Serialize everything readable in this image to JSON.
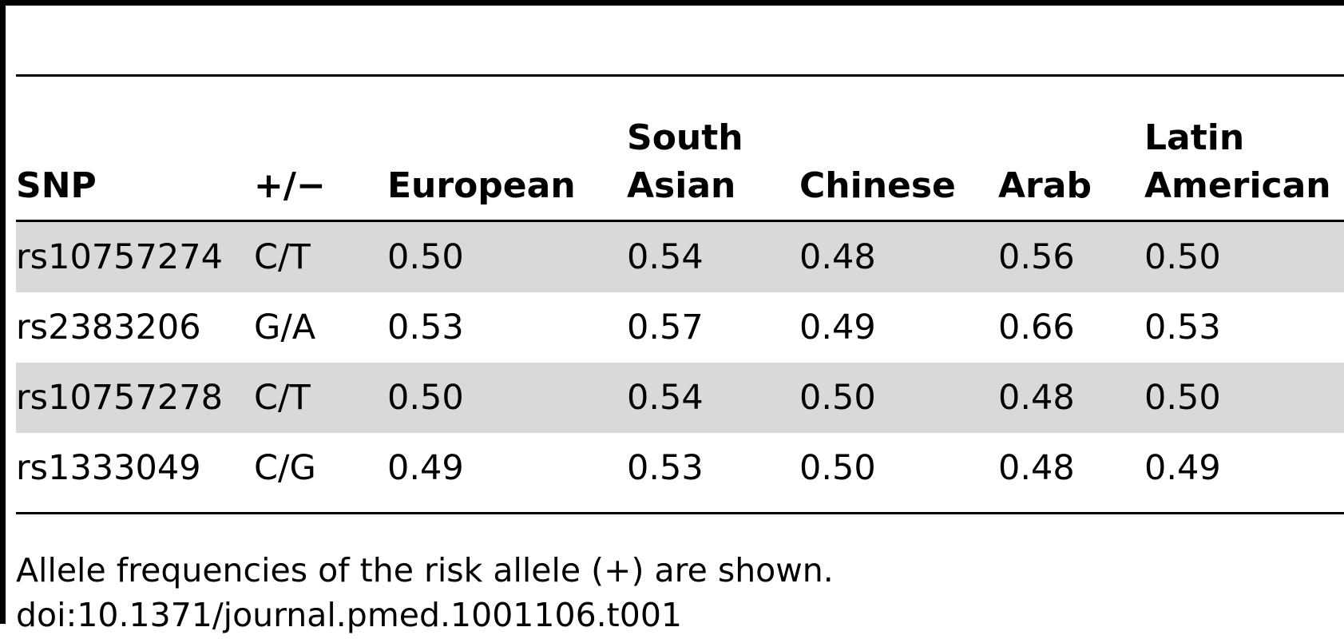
{
  "table": {
    "headers": [
      {
        "line1": "",
        "line2": "SNP"
      },
      {
        "line1": "",
        "line2": "+/−"
      },
      {
        "line1": "",
        "line2": "European"
      },
      {
        "line1": "South",
        "line2": "Asian"
      },
      {
        "line1": "",
        "line2": "Chinese"
      },
      {
        "line1": "",
        "line2": "Arab"
      },
      {
        "line1": "Latin",
        "line2": "American"
      }
    ],
    "rows": [
      [
        "rs10757274",
        "C/T",
        "0.50",
        "0.54",
        "0.48",
        "0.56",
        "0.50"
      ],
      [
        "rs2383206",
        "G/A",
        "0.53",
        "0.57",
        "0.49",
        "0.66",
        "0.53"
      ],
      [
        "rs10757278",
        "C/T",
        "0.50",
        "0.54",
        "0.50",
        "0.48",
        "0.50"
      ],
      [
        "rs1333049",
        "C/G",
        "0.49",
        "0.53",
        "0.50",
        "0.48",
        "0.49"
      ]
    ],
    "row_shading_color": "#d9d9d9"
  },
  "footnote": {
    "note": "Allele frequencies of the risk allele (+) are shown.",
    "doi": "doi:10.1371/journal.pmed.1001106.t001"
  }
}
